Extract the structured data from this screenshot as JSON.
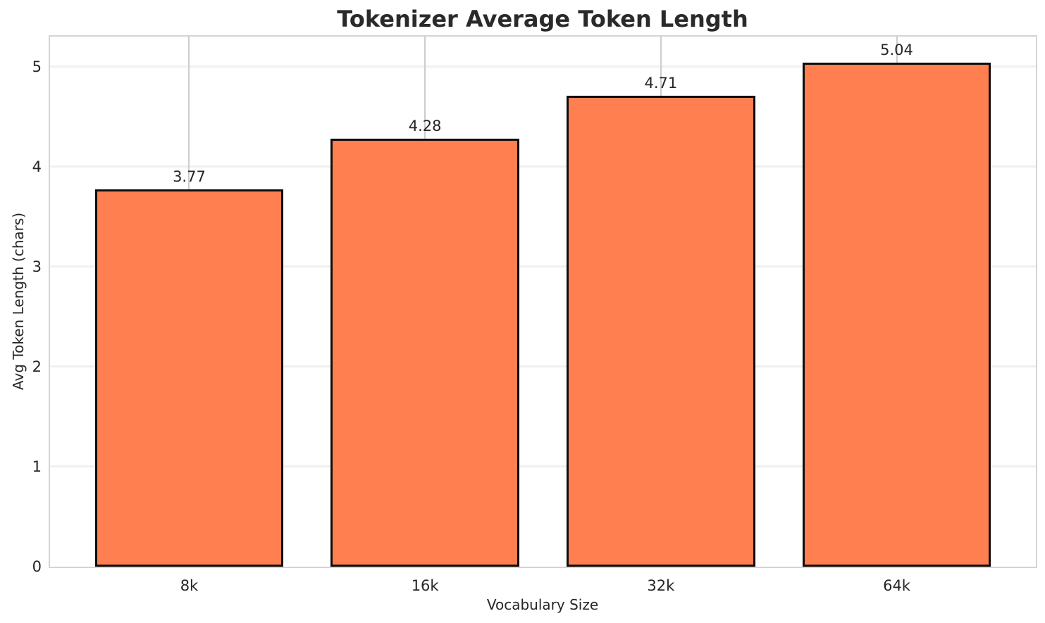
{
  "chart_data": {
    "type": "bar",
    "title": "Tokenizer Average Token Length",
    "xlabel": "Vocabulary Size",
    "ylabel": "Avg Token Length (chars)",
    "categories": [
      "8k",
      "16k",
      "32k",
      "64k"
    ],
    "values": [
      3.77,
      4.28,
      4.71,
      5.04
    ],
    "value_labels": [
      "3.77",
      "4.28",
      "4.71",
      "5.04"
    ],
    "yticks": [
      0,
      1,
      2,
      3,
      4,
      5
    ],
    "ylim": [
      0,
      5.3
    ],
    "bar_width_ratio": 0.8,
    "legend": "none",
    "grid": "horizontal and vertical guide lines on",
    "colors": {
      "bar_fill": "#ff7f50",
      "bar_edge": "#0d0d0d",
      "grid_horizontal": "#f0f0f0",
      "grid_vertical": "#cdcdcd",
      "plot_border": "#d4d4d4",
      "text": "#262626",
      "background": "#ffffff"
    }
  }
}
